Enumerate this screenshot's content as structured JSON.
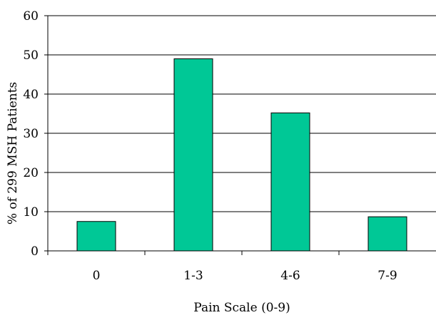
{
  "chart_data": {
    "type": "bar",
    "title": "",
    "xlabel": "Pain Scale (0-9)",
    "ylabel": "% of 299 MSH Patients",
    "categories": [
      "0",
      "1-3",
      "4-6",
      "7-9"
    ],
    "values": [
      7.5,
      49,
      35.2,
      8.7
    ],
    "ylim": [
      0,
      60
    ],
    "yticks": [
      0,
      10,
      20,
      30,
      40,
      50,
      60
    ],
    "grid": true,
    "legend": "none",
    "colors": {
      "bar_fill": "#00C896",
      "bar_stroke": "#000000",
      "grid": "#000000",
      "axis": "#000000"
    }
  }
}
